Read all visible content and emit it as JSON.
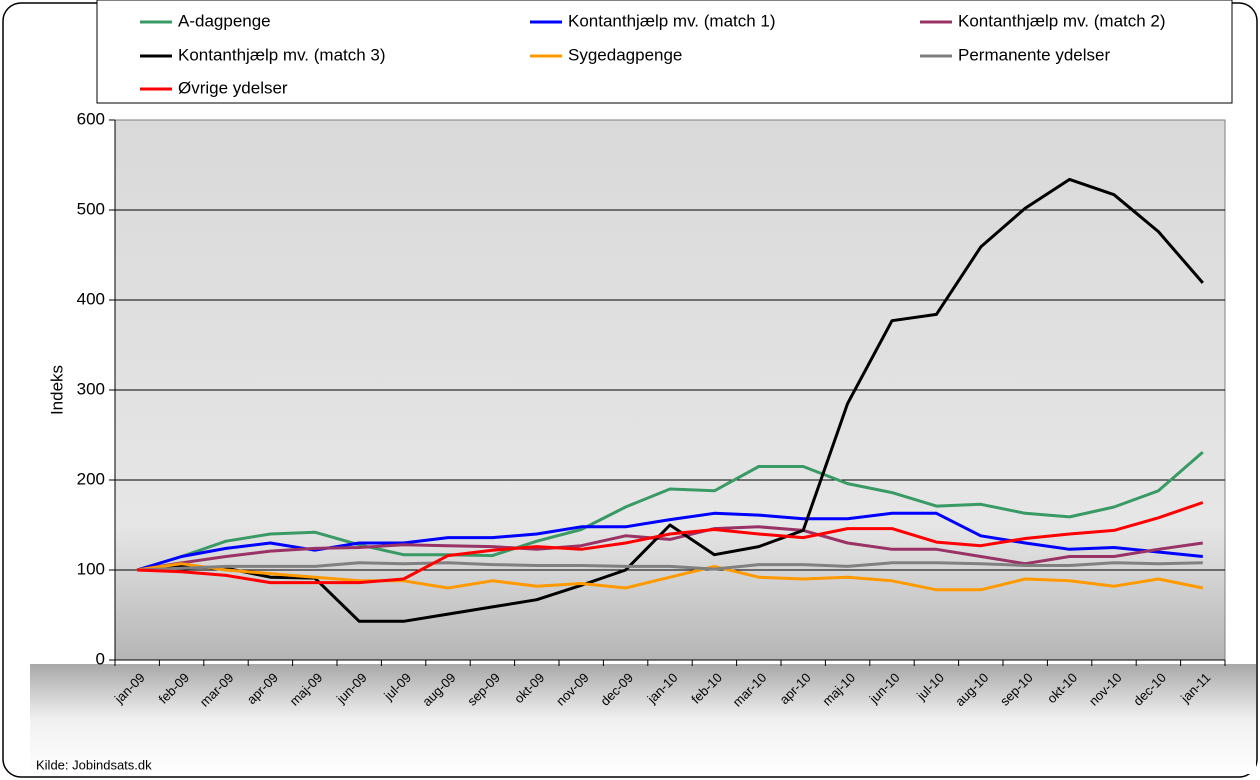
{
  "chart_data": {
    "type": "line",
    "y_label": "Indeks",
    "source": "Kilde: Jobindsats.dk",
    "categories": [
      "jan-09",
      "feb-09",
      "mar-09",
      "apr-09",
      "maj-09",
      "jun-09",
      "jul-09",
      "aug-09",
      "sep-09",
      "okt-09",
      "nov-09",
      "dec-09",
      "jan-10",
      "feb-10",
      "mar-10",
      "apr-10",
      "maj-10",
      "jun-10",
      "jul-10",
      "aug-10",
      "sep-10",
      "okt-10",
      "nov-10",
      "dec-10",
      "jan-11"
    ],
    "ylim": [
      0,
      600
    ],
    "yticks": [
      0,
      100,
      200,
      300,
      400,
      500,
      600
    ],
    "grid": true,
    "series": [
      {
        "name": "A-dagpenge",
        "color": "#3a9a66",
        "values": [
          100,
          115,
          132,
          140,
          142,
          128,
          117,
          117,
          116,
          132,
          145,
          170,
          190,
          188,
          215,
          215,
          196,
          186,
          171,
          173,
          163,
          159,
          170,
          188,
          231
        ]
      },
      {
        "name": "Kontanthjælp mv. (match 1)",
        "color": "#0000ff",
        "values": [
          100,
          115,
          124,
          130,
          122,
          130,
          130,
          136,
          136,
          140,
          148,
          148,
          156,
          163,
          161,
          157,
          157,
          163,
          163,
          138,
          130,
          123,
          125,
          120,
          115
        ]
      },
      {
        "name": "Kontanthjælp mv. (match 2)",
        "color": "#993366",
        "values": [
          100,
          108,
          115,
          121,
          124,
          125,
          128,
          127,
          126,
          123,
          127,
          138,
          134,
          146,
          148,
          144,
          130,
          123,
          123,
          115,
          107,
          115,
          115,
          123,
          130
        ]
      },
      {
        "name": "Kontanthjælp mv. (match 3)",
        "color": "#000000",
        "values": [
          100,
          104,
          102,
          92,
          91,
          43,
          43,
          51,
          59,
          67,
          83,
          100,
          150,
          117,
          126,
          144,
          285,
          377,
          384,
          459,
          502,
          534,
          517,
          476,
          419
        ]
      },
      {
        "name": "Sygedagpenge",
        "color": "#ff9900",
        "values": [
          100,
          107,
          100,
          96,
          92,
          88,
          88,
          80,
          88,
          82,
          85,
          80,
          92,
          104,
          92,
          90,
          92,
          88,
          78,
          78,
          90,
          88,
          82,
          90,
          80
        ]
      },
      {
        "name": "Permanente ydelser",
        "color": "#808080",
        "values": [
          100,
          102,
          104,
          104,
          104,
          108,
          107,
          108,
          106,
          105,
          105,
          104,
          104,
          101,
          106,
          106,
          104,
          108,
          108,
          107,
          105,
          105,
          108,
          107,
          108
        ]
      },
      {
        "name": "Øvrige ydelser",
        "color": "#ff0000",
        "values": [
          100,
          98,
          94,
          86,
          86,
          86,
          90,
          116,
          122,
          126,
          123,
          130,
          140,
          145,
          140,
          136,
          146,
          146,
          131,
          127,
          135,
          140,
          144,
          158,
          175
        ]
      }
    ]
  }
}
